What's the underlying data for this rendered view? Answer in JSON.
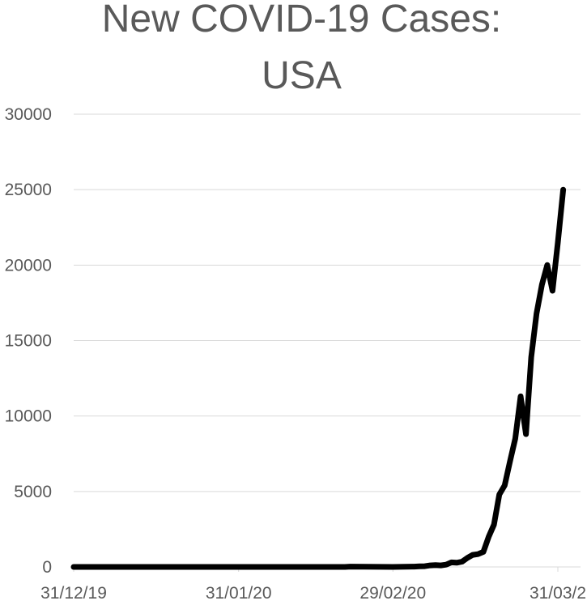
{
  "chart_data": {
    "type": "line",
    "title_lines": [
      "New COVID-19 Cases:",
      "USA"
    ],
    "xlabel": "",
    "ylabel": "",
    "ylim": [
      0,
      30000
    ],
    "grid": true,
    "legend": "none",
    "y_ticks": [
      "0",
      "5000",
      "10000",
      "15000",
      "20000",
      "25000",
      "30000"
    ],
    "x_ticks": [
      {
        "label": "31/12/19",
        "date": "2019-12-31"
      },
      {
        "label": "31/01/20",
        "date": "2020-01-31"
      },
      {
        "label": "29/02/20",
        "date": "2020-02-29"
      },
      {
        "label": "31/03/2",
        "date": "2020-03-31"
      }
    ],
    "series": [
      {
        "color": "#000000",
        "points": [
          {
            "date": "2019-12-31",
            "value": 0
          },
          {
            "date": "2020-01-31",
            "value": 0
          },
          {
            "date": "2020-02-20",
            "value": 0
          },
          {
            "date": "2020-02-21",
            "value": 20
          },
          {
            "date": "2020-02-29",
            "value": 0
          },
          {
            "date": "2020-03-04",
            "value": 20
          },
          {
            "date": "2020-03-05",
            "value": 40
          },
          {
            "date": "2020-03-06",
            "value": 50
          },
          {
            "date": "2020-03-07",
            "value": 100
          },
          {
            "date": "2020-03-08",
            "value": 120
          },
          {
            "date": "2020-03-09",
            "value": 100
          },
          {
            "date": "2020-03-10",
            "value": 150
          },
          {
            "date": "2020-03-11",
            "value": 300
          },
          {
            "date": "2020-03-12",
            "value": 280
          },
          {
            "date": "2020-03-13",
            "value": 350
          },
          {
            "date": "2020-03-14",
            "value": 600
          },
          {
            "date": "2020-03-15",
            "value": 800
          },
          {
            "date": "2020-03-16",
            "value": 850
          },
          {
            "date": "2020-03-17",
            "value": 1000
          },
          {
            "date": "2020-03-18",
            "value": 2000
          },
          {
            "date": "2020-03-19",
            "value": 2800
          },
          {
            "date": "2020-03-20",
            "value": 4800
          },
          {
            "date": "2020-03-21",
            "value": 5400
          },
          {
            "date": "2020-03-22",
            "value": 7000
          },
          {
            "date": "2020-03-23",
            "value": 8500
          },
          {
            "date": "2020-03-24",
            "value": 11300
          },
          {
            "date": "2020-03-25",
            "value": 8800
          },
          {
            "date": "2020-03-26",
            "value": 13900
          },
          {
            "date": "2020-03-27",
            "value": 16800
          },
          {
            "date": "2020-03-28",
            "value": 18700
          },
          {
            "date": "2020-03-29",
            "value": 20000
          },
          {
            "date": "2020-03-30",
            "value": 18300
          },
          {
            "date": "2020-03-31",
            "value": 21500
          },
          {
            "date": "2020-04-01",
            "value": 25000
          }
        ]
      }
    ]
  }
}
